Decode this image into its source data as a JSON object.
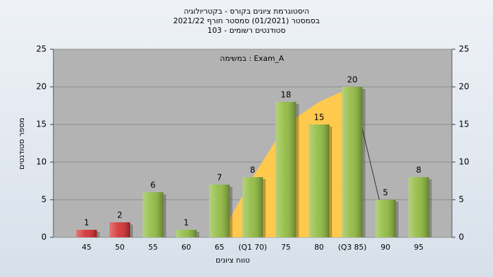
{
  "chart_data": {
    "type": "bar",
    "title": [
      "היסטוגרמת ציונים בקורס - בקטריולוגיה",
      "בסמסטר  (01/2021)  סמסטר חורף 2021/22",
      "סטודנטים רשומים - 103"
    ],
    "annotation": "במשימה : Exam_A",
    "x_label": "טווח ציונים",
    "y_label": "מספר סטודנטים",
    "categories": [
      "45",
      "50",
      "55",
      "60",
      "65",
      "(Q1 70)",
      "75",
      "80",
      "(Q3 85)",
      "90",
      "95"
    ],
    "values": [
      1,
      2,
      6,
      1,
      7,
      8,
      18,
      15,
      20,
      5,
      8
    ],
    "colors": [
      "#d42a2a",
      "#d42a2a",
      "#8db83a",
      "#8db83a",
      "#8db83a",
      "#8db83a",
      "#8db83a",
      "#8db83a",
      "#8db83a",
      "#8db83a",
      "#8db83a"
    ],
    "area_values": [
      null,
      null,
      null,
      null,
      0,
      8,
      15,
      18,
      20,
      null,
      null
    ],
    "area_color": "#ffc94d",
    "line_values": [
      null,
      null,
      null,
      null,
      null,
      null,
      null,
      null,
      20,
      1.5,
      null
    ],
    "line_color": "#333333",
    "ylim": [
      0,
      25
    ],
    "yticks": [
      0,
      5,
      10,
      15,
      20,
      25
    ],
    "grid": true
  }
}
